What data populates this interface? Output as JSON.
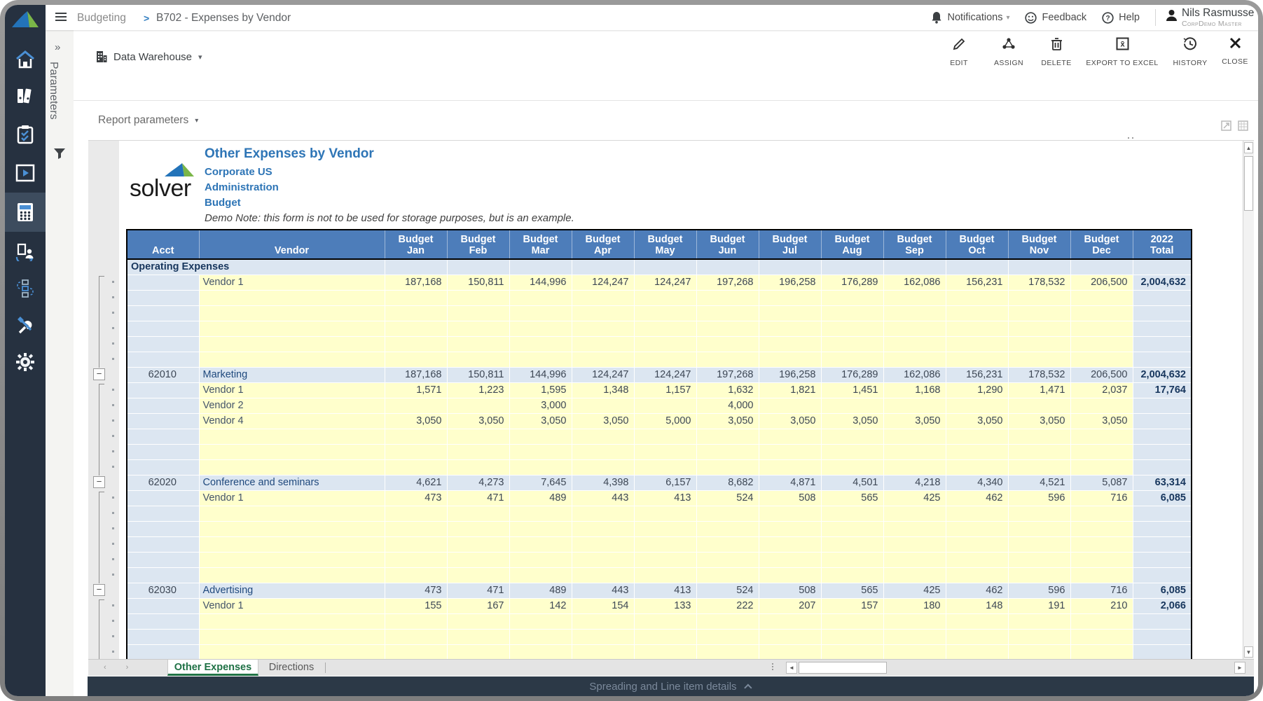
{
  "topbar": {
    "breadcrumb": {
      "section": "Budgeting",
      "separator": ">",
      "page": "B702 - Expenses by Vendor"
    },
    "notifications_label": "Notifications",
    "feedback_label": "Feedback",
    "help_label": "Help",
    "user": {
      "name": "Nils Rasmusse",
      "role": "CorpDemo Master"
    }
  },
  "sidebar": {
    "icons": [
      "solver-logo",
      "home",
      "binders",
      "tasks",
      "report",
      "budgeting",
      "collaboration",
      "workflow",
      "tools",
      "settings"
    ],
    "active_item": "budgeting"
  },
  "parameters_panel": {
    "label": "Parameters",
    "collapse_icon": "chevrons-right",
    "filter_icon": "funnel"
  },
  "toolbar": {
    "source_label": "Data Warehouse",
    "buttons": [
      {
        "label": "EDIT",
        "icon": "pencil"
      },
      {
        "label": "ASSIGN",
        "icon": "share-nodes"
      },
      {
        "label": "DELETE",
        "icon": "trash"
      },
      {
        "label": "EXPORT TO EXCEL",
        "icon": "excel-box"
      },
      {
        "label": "HISTORY",
        "icon": "history-clock"
      },
      {
        "label": "CLOSE",
        "icon": "close-x"
      }
    ]
  },
  "report_parameters_label": "Report parameters",
  "report": {
    "logo_text": "solver",
    "title": "Other Expenses by Vendor",
    "entity": "Corporate US",
    "department": "Administration",
    "scenario": "Budget",
    "note": "Demo Note: this form is not to be used for storage purposes, but is an example.",
    "table": {
      "columns": [
        {
          "label": "Acct"
        },
        {
          "label": "Vendor"
        },
        {
          "l1": "Budget",
          "l2": "Jan"
        },
        {
          "l1": "Budget",
          "l2": "Feb"
        },
        {
          "l1": "Budget",
          "l2": "Mar"
        },
        {
          "l1": "Budget",
          "l2": "Apr"
        },
        {
          "l1": "Budget",
          "l2": "May"
        },
        {
          "l1": "Budget",
          "l2": "Jun"
        },
        {
          "l1": "Budget",
          "l2": "Jul"
        },
        {
          "l1": "Budget",
          "l2": "Aug"
        },
        {
          "l1": "Budget",
          "l2": "Sep"
        },
        {
          "l1": "Budget",
          "l2": "Oct"
        },
        {
          "l1": "Budget",
          "l2": "Nov"
        },
        {
          "l1": "Budget",
          "l2": "Dec"
        },
        {
          "l1": "2022",
          "l2": "Total"
        }
      ],
      "rows": [
        {
          "type": "section",
          "label": "Operating Expenses"
        },
        {
          "type": "detail",
          "acct": "",
          "vendor": "Vendor 1",
          "values": [
            "187,168",
            "150,811",
            "144,996",
            "124,247",
            "124,247",
            "197,268",
            "196,258",
            "176,289",
            "162,086",
            "156,231",
            "178,532",
            "206,500"
          ],
          "total": "2,004,632"
        },
        {
          "type": "empty"
        },
        {
          "type": "empty"
        },
        {
          "type": "empty"
        },
        {
          "type": "empty"
        },
        {
          "type": "empty"
        },
        {
          "type": "group",
          "acct": "62010",
          "vendor": "Marketing",
          "values": [
            "187,168",
            "150,811",
            "144,996",
            "124,247",
            "124,247",
            "197,268",
            "196,258",
            "176,289",
            "162,086",
            "156,231",
            "178,532",
            "206,500"
          ],
          "total": "2,004,632"
        },
        {
          "type": "detail",
          "acct": "",
          "vendor": "Vendor 1",
          "values": [
            "1,571",
            "1,223",
            "1,595",
            "1,348",
            "1,157",
            "1,632",
            "1,821",
            "1,451",
            "1,168",
            "1,290",
            "1,471",
            "2,037"
          ],
          "total": "17,764"
        },
        {
          "type": "detail",
          "acct": "",
          "vendor": "Vendor 2",
          "values": [
            "",
            "",
            "3,000",
            "",
            "",
            "4,000",
            "",
            "",
            "",
            "",
            "",
            ""
          ],
          "total": ""
        },
        {
          "type": "detail",
          "acct": "",
          "vendor": "Vendor 4",
          "values": [
            "3,050",
            "3,050",
            "3,050",
            "3,050",
            "5,000",
            "3,050",
            "3,050",
            "3,050",
            "3,050",
            "3,050",
            "3,050",
            "3,050"
          ],
          "total": ""
        },
        {
          "type": "empty"
        },
        {
          "type": "empty"
        },
        {
          "type": "empty"
        },
        {
          "type": "group",
          "acct": "62020",
          "vendor": "Conference and seminars",
          "values": [
            "4,621",
            "4,273",
            "7,645",
            "4,398",
            "6,157",
            "8,682",
            "4,871",
            "4,501",
            "4,218",
            "4,340",
            "4,521",
            "5,087"
          ],
          "total": "63,314"
        },
        {
          "type": "detail",
          "acct": "",
          "vendor": "Vendor 1",
          "values": [
            "473",
            "471",
            "489",
            "443",
            "413",
            "524",
            "508",
            "565",
            "425",
            "462",
            "596",
            "716"
          ],
          "total": "6,085"
        },
        {
          "type": "empty"
        },
        {
          "type": "empty"
        },
        {
          "type": "empty"
        },
        {
          "type": "empty"
        },
        {
          "type": "empty"
        },
        {
          "type": "group",
          "acct": "62030",
          "vendor": "Advertising",
          "values": [
            "473",
            "471",
            "489",
            "443",
            "413",
            "524",
            "508",
            "565",
            "425",
            "462",
            "596",
            "716"
          ],
          "total": "6,085"
        },
        {
          "type": "detail",
          "acct": "",
          "vendor": "Vendor 1",
          "values": [
            "155",
            "167",
            "142",
            "154",
            "133",
            "222",
            "207",
            "157",
            "180",
            "148",
            "191",
            "210"
          ],
          "total": "2,066"
        },
        {
          "type": "empty"
        },
        {
          "type": "empty"
        },
        {
          "type": "empty"
        }
      ]
    }
  },
  "sheet_tabs": {
    "tabs": [
      {
        "label": "Other Expenses",
        "active": true
      },
      {
        "label": "Directions",
        "active": false
      }
    ]
  },
  "footer_bar": {
    "label": "Spreading and Line item details"
  },
  "colors": {
    "header_blue": "#4d7dba",
    "row_blue": "#dce6f1",
    "input_yellow": "#ffffcc",
    "sidebar_navy": "#263140",
    "accent_blue": "#2e75b6",
    "tab_green": "#217346",
    "footer_navy": "#2c3947"
  }
}
